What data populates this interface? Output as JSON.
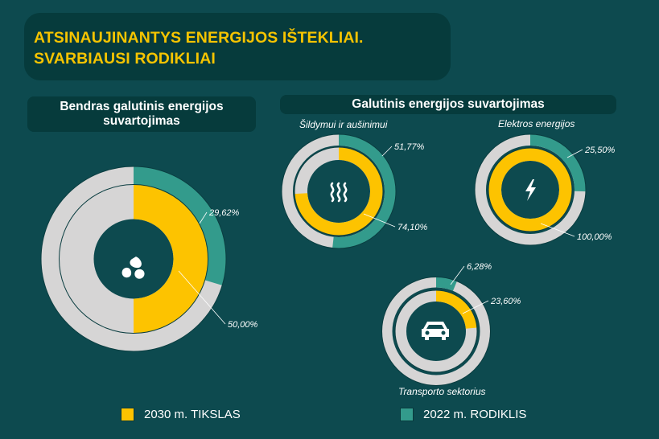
{
  "title": {
    "line1": "ATSINAUJINANTYS ENERGIJOS IŠTEKLIAI.",
    "line2": "SVARBIAUSI RODIKLIAI"
  },
  "sections": {
    "left": {
      "line1": "Bendras galutinis energijos",
      "line2": "suvartojimas"
    },
    "right": {
      "line1": "Galutinis energijos suvartojimas"
    }
  },
  "colors": {
    "target": "#fdc300",
    "indicator": "#339b8c",
    "track": "#d6d5d5",
    "hub": "#0d4a4f"
  },
  "legend": {
    "target": "2030 m. TIKSLAS",
    "indicator": "2022 m. RODIKLIS"
  },
  "chart_data": [
    {
      "type": "donut",
      "id": "total",
      "title": "Bendras galutinis energijos suvartojimas",
      "icon": "drops-icon",
      "series": [
        {
          "name": "2030 m. TIKSLAS",
          "value": 50.0,
          "label": "50,00%"
        },
        {
          "name": "2022 m. RODIKLIS",
          "value": 29.62,
          "label": "29,62%"
        }
      ]
    },
    {
      "type": "donut",
      "id": "heating",
      "title": "Šildymui ir aušinimui",
      "icon": "heat-icon",
      "series": [
        {
          "name": "2030 m. TIKSLAS",
          "value": 74.1,
          "label": "74,10%"
        },
        {
          "name": "2022 m. RODIKLIS",
          "value": 51.77,
          "label": "51,77%"
        }
      ]
    },
    {
      "type": "donut",
      "id": "electricity",
      "title": "Elektros energijos",
      "icon": "lightning-icon",
      "series": [
        {
          "name": "2030 m. TIKSLAS",
          "value": 100.0,
          "label": "100,00%"
        },
        {
          "name": "2022 m. RODIKLIS",
          "value": 25.5,
          "label": "25,50%"
        }
      ]
    },
    {
      "type": "donut",
      "id": "transport",
      "title": "Transporto sektorius",
      "icon": "car-icon",
      "series": [
        {
          "name": "2030 m. TIKSLAS",
          "value": 23.6,
          "label": "23,60%"
        },
        {
          "name": "2022 m. RODIKLIS",
          "value": 6.28,
          "label": "6,28%"
        }
      ]
    }
  ]
}
